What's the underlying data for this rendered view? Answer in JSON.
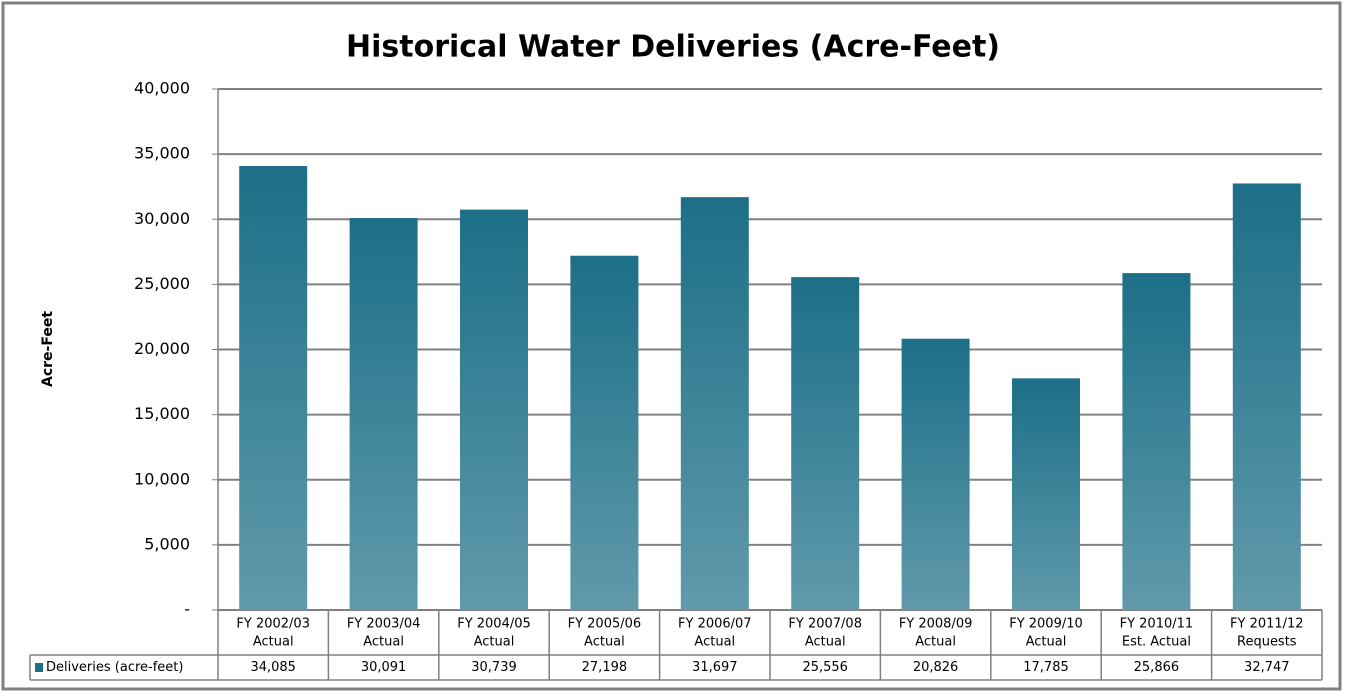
{
  "chart_data": {
    "type": "bar",
    "title": "Historical Water Deliveries (Acre-Feet)",
    "y_label": "Acre-Feet",
    "categories": [
      [
        "FY 2002/03",
        "Actual"
      ],
      [
        "FY 2003/04",
        "Actual"
      ],
      [
        "FY 2004/05",
        "Actual"
      ],
      [
        "FY 2005/06",
        "Actual"
      ],
      [
        "FY 2006/07",
        "Actual"
      ],
      [
        "FY 2007/08",
        "Actual"
      ],
      [
        "FY 2008/09",
        "Actual"
      ],
      [
        "FY 2009/10",
        "Actual"
      ],
      [
        "FY 2010/11",
        "Est. Actual"
      ],
      [
        "FY 2011/12",
        "Requests"
      ]
    ],
    "series": [
      {
        "name": "Deliveries (acre-feet)",
        "color": "#1c6f87",
        "values": [
          34085,
          30091,
          30739,
          27198,
          31697,
          25556,
          20826,
          17785,
          25866,
          32747
        ],
        "value_labels": [
          "34,085",
          "30,091",
          "30,739",
          "27,198",
          "31,697",
          "25,556",
          "20,826",
          "17,785",
          "25,866",
          "32,747"
        ]
      }
    ],
    "ylim": [
      0,
      40000
    ],
    "yticks": [
      {
        "value": 0,
        "label": "-"
      },
      {
        "value": 5000,
        "label": "5,000"
      },
      {
        "value": 10000,
        "label": "10,000"
      },
      {
        "value": 15000,
        "label": "15,000"
      },
      {
        "value": 20000,
        "label": "20,000"
      },
      {
        "value": 25000,
        "label": "25,000"
      },
      {
        "value": 30000,
        "label": "30,000"
      },
      {
        "value": 35000,
        "label": "35,000"
      },
      {
        "value": 40000,
        "label": "40,000"
      }
    ],
    "grid": true
  }
}
